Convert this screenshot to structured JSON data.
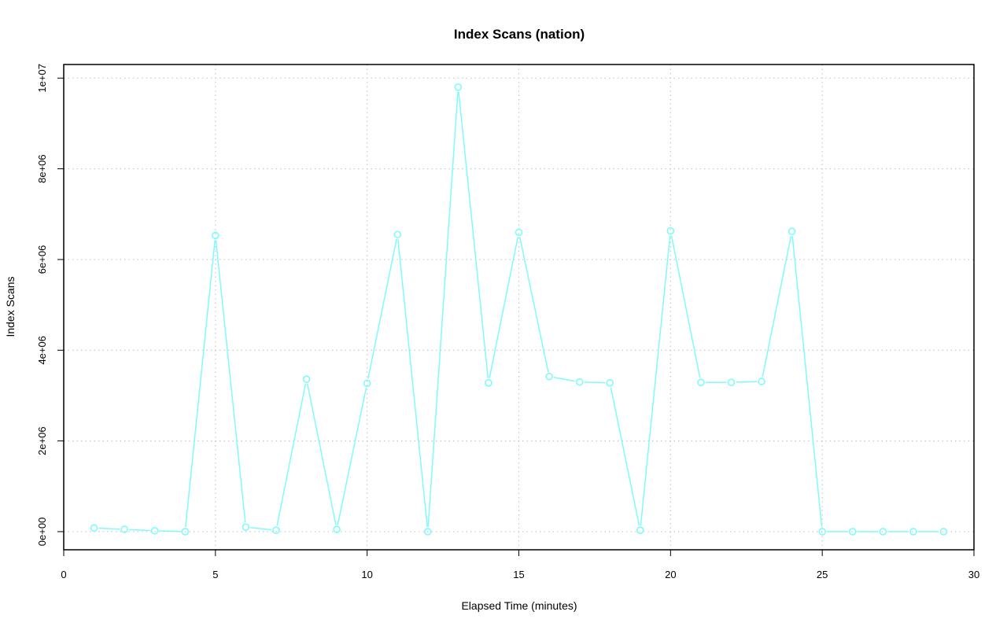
{
  "chart_data": {
    "type": "line",
    "title": "Index Scans (nation)",
    "xlabel": "Elapsed Time (minutes)",
    "ylabel": "Index Scans",
    "xlim": [
      0,
      30
    ],
    "ylim": [
      -400000,
      10300000
    ],
    "x_ticks": [
      0,
      5,
      10,
      15,
      20,
      25,
      30
    ],
    "x_tick_labels": [
      "0",
      "5",
      "10",
      "15",
      "20",
      "25",
      "30"
    ],
    "y_ticks": [
      0,
      2000000,
      4000000,
      6000000,
      8000000,
      10000000
    ],
    "y_tick_labels": [
      "0e+00",
      "2e+06",
      "4e+06",
      "6e+06",
      "8e+06",
      "1e+07"
    ],
    "grid": true,
    "series": [
      {
        "color": "#7ffbfb",
        "marker": "open-circle",
        "x": [
          1,
          2,
          3,
          4,
          5,
          6,
          7,
          8,
          9,
          10,
          11,
          12,
          13,
          14,
          15,
          16,
          17,
          18,
          19,
          20,
          21,
          22,
          23,
          24,
          25,
          26,
          27,
          28,
          29
        ],
        "values": [
          80000,
          50000,
          20000,
          0,
          6530000,
          100000,
          30000,
          3360000,
          50000,
          3270000,
          6550000,
          0,
          9800000,
          3280000,
          6600000,
          3420000,
          3300000,
          3280000,
          30000,
          6630000,
          3290000,
          3290000,
          3310000,
          6620000,
          0,
          0,
          0,
          0,
          0
        ]
      }
    ]
  }
}
